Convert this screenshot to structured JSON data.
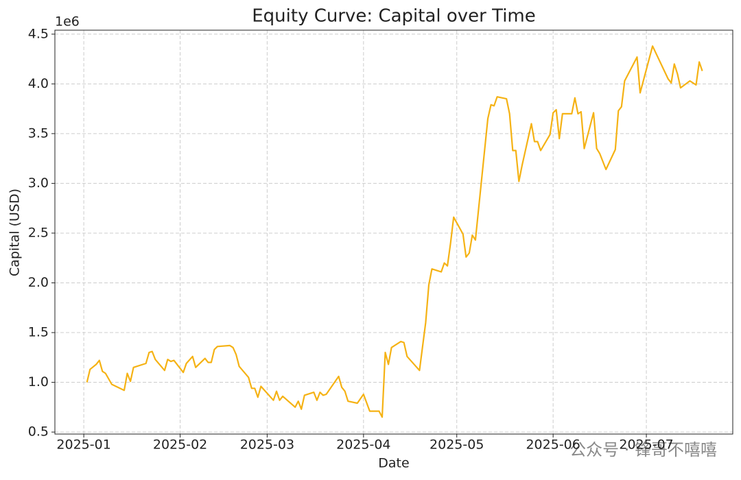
{
  "chart_data": {
    "type": "line",
    "title": "Equity Curve: Capital over Time",
    "x_label": "Date",
    "y_label": "Capital (USD)",
    "y_offset_label": "1e6",
    "watermark": "公众号 · 锋哥不嘻嘻",
    "x": [
      1,
      2,
      4,
      5,
      6,
      7,
      9,
      13,
      14,
      15,
      16,
      20,
      21,
      22,
      23,
      26,
      27,
      28,
      29,
      32,
      33,
      35,
      36,
      39,
      40,
      41,
      42,
      43,
      47,
      48,
      49,
      50,
      53,
      54,
      55,
      56,
      57,
      61,
      62,
      63,
      64,
      68,
      69,
      70,
      71,
      74,
      75,
      76,
      77,
      78,
      82,
      83,
      84,
      85,
      88,
      90,
      92,
      95,
      96,
      97,
      98,
      99,
      102,
      103,
      104,
      108,
      110,
      111,
      112,
      115,
      116,
      117,
      118,
      119,
      122,
      123,
      124,
      125,
      126,
      130,
      131,
      132,
      133,
      136,
      137,
      138,
      139,
      140,
      141,
      144,
      145,
      146,
      147,
      150,
      151,
      152,
      153,
      154,
      157,
      158,
      159,
      160,
      161,
      164,
      165,
      166,
      168,
      171,
      172,
      173,
      174,
      178,
      179,
      183,
      188,
      189,
      190,
      191,
      192,
      195,
      197,
      198,
      199
    ],
    "series": [
      {
        "name": "Capital",
        "color": "#f5b214",
        "values": [
          1.0,
          1.13,
          1.18,
          1.22,
          1.11,
          1.09,
          0.98,
          0.92,
          1.09,
          1.01,
          1.15,
          1.19,
          1.3,
          1.31,
          1.23,
          1.12,
          1.23,
          1.21,
          1.22,
          1.1,
          1.19,
          1.26,
          1.15,
          1.24,
          1.2,
          1.2,
          1.33,
          1.36,
          1.37,
          1.35,
          1.28,
          1.16,
          1.05,
          0.94,
          0.94,
          0.85,
          0.96,
          0.82,
          0.91,
          0.82,
          0.86,
          0.75,
          0.81,
          0.73,
          0.87,
          0.9,
          0.82,
          0.9,
          0.87,
          0.88,
          1.06,
          0.95,
          0.91,
          0.81,
          0.79,
          0.88,
          0.71,
          0.71,
          0.65,
          1.3,
          1.18,
          1.35,
          1.41,
          1.4,
          1.26,
          1.12,
          1.6,
          1.98,
          2.14,
          2.11,
          2.2,
          2.17,
          2.4,
          2.66,
          2.49,
          2.26,
          2.3,
          2.48,
          2.43,
          3.65,
          3.79,
          3.78,
          3.87,
          3.85,
          3.7,
          3.33,
          3.33,
          3.02,
          3.18,
          3.6,
          3.42,
          3.42,
          3.33,
          3.49,
          3.71,
          3.74,
          3.45,
          3.7,
          3.7,
          3.86,
          3.7,
          3.72,
          3.35,
          3.71,
          3.35,
          3.3,
          3.14,
          3.34,
          3.73,
          3.77,
          4.03,
          4.27,
          3.91,
          4.38,
          4.05,
          4.01,
          4.2,
          4.1,
          3.96,
          4.03,
          3.99,
          4.22,
          4.13
        ]
      }
    ],
    "xlim": [
      -9.3,
      208.8
    ],
    "xticks": [
      {
        "value": 0,
        "label": "2025-01"
      },
      {
        "value": 31,
        "label": "2025-02"
      },
      {
        "value": 59,
        "label": "2025-03"
      },
      {
        "value": 90,
        "label": "2025-04"
      },
      {
        "value": 120,
        "label": "2025-05"
      },
      {
        "value": 151,
        "label": "2025-06"
      },
      {
        "value": 181,
        "label": "2025-07"
      }
    ],
    "ylim": [
      0.48,
      4.54
    ],
    "yticks": [
      0.5,
      {
        "value": 1,
        "label": "1.0"
      },
      1.5,
      {
        "value": 2,
        "label": "2.0"
      },
      2.5,
      {
        "value": 3,
        "label": "3.0"
      },
      3.5,
      {
        "value": 4,
        "label": "4.0"
      },
      4.5
    ],
    "grid": true
  }
}
